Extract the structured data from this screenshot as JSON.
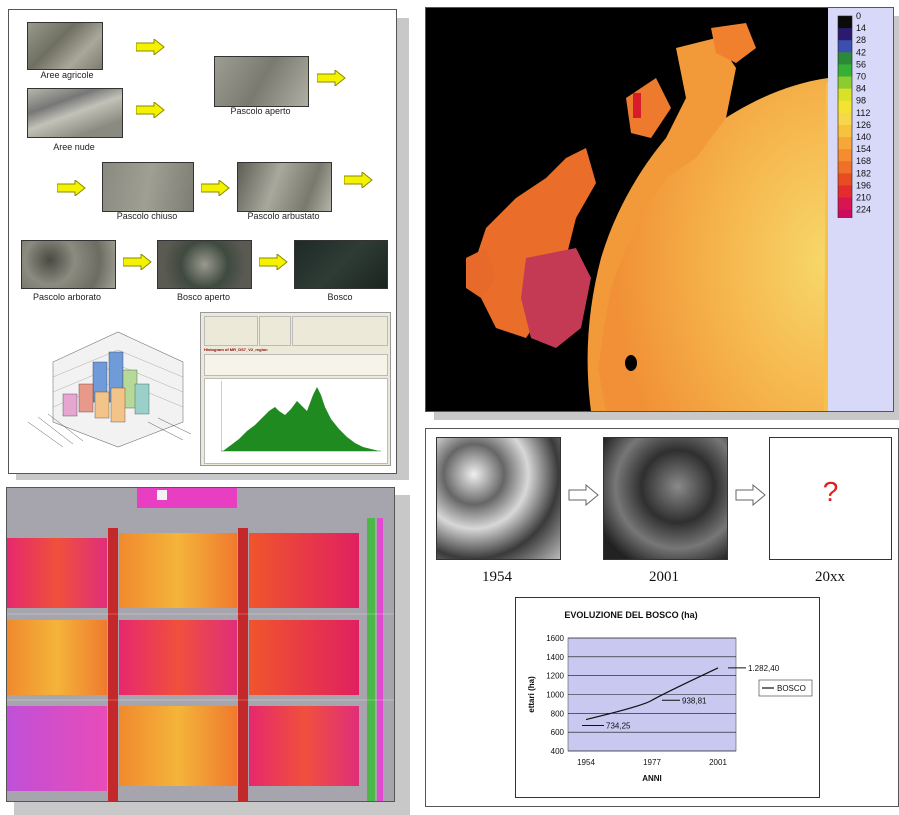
{
  "panel1": {
    "labels": {
      "aree_agricole": "Aree agricole",
      "aree_nude": "Aree nude",
      "pascolo_aperto": "Pascolo aperto",
      "pascolo_chiuso": "Pascolo chiuso",
      "pascolo_arbustato": "Pascolo arbustato",
      "pascolo_arborato": "Pascolo arborato",
      "bosco_aperto": "Bosco aperto",
      "bosco": "Bosco"
    },
    "arrow_color": "#f5f200",
    "histogram_window": {
      "title": "Histogram of MR_DS7_V2_region"
    }
  },
  "panel2": {
    "legend_values": [
      "0",
      "14",
      "28",
      "42",
      "56",
      "70",
      "84",
      "98",
      "112",
      "126",
      "140",
      "154",
      "168",
      "182",
      "196",
      "210",
      "224"
    ],
    "legend_colors": [
      "#0b0b0b",
      "#2b1a6e",
      "#3a4fb0",
      "#2b8a3a",
      "#35b035",
      "#8ccc2f",
      "#d9e12a",
      "#f3e431",
      "#f6d84a",
      "#f8c23e",
      "#f7a63a",
      "#f58c31",
      "#f07028",
      "#ea4c22",
      "#e42c2f",
      "#da1450",
      "#cc0a60"
    ]
  },
  "panel4": {
    "years": [
      "1954",
      "2001",
      "20xx"
    ],
    "question_mark": "?",
    "question_color": "#e02020"
  },
  "chart_data": {
    "type": "line",
    "title": "EVOLUZIONE DEL BOSCO (ha)",
    "xlabel": "ANNI",
    "ylabel": "ettari (ha)",
    "categories": [
      "1954",
      "1977",
      "2001"
    ],
    "series": [
      {
        "name": "BOSCO",
        "values": [
          734.25,
          938.81,
          1282.4
        ]
      }
    ],
    "data_labels": [
      "734,25",
      "938,81",
      "1.282,40"
    ],
    "yticks": [
      "400",
      "600",
      "800",
      "1000",
      "1200",
      "1400",
      "1600"
    ],
    "ylim": [
      400,
      1600
    ],
    "legend": "right",
    "background": "#c8c8f0"
  }
}
